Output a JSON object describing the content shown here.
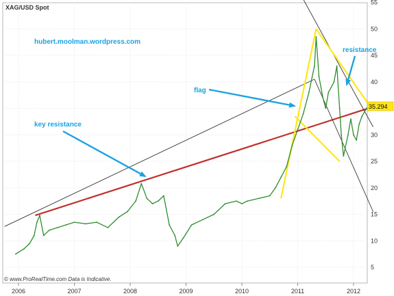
{
  "chart_data": {
    "type": "line",
    "title": "XAG/USD Spot",
    "source_note": "© www.ProRealTime.com  Data is Indicative.",
    "watermark": "hubert.moolman.wordpress.com",
    "x_ticks": [
      "2006",
      "2007",
      "2008",
      "2009",
      "2010",
      "2011",
      "2012"
    ],
    "y_ticks": [
      5,
      10,
      15,
      20,
      25,
      30,
      35,
      40,
      45,
      50,
      55
    ],
    "ylim": [
      2,
      55
    ],
    "last_price_label": "35.294",
    "grid": true,
    "price_series": {
      "x": [
        2005.95,
        2006.1,
        2006.2,
        2006.28,
        2006.33,
        2006.38,
        2006.45,
        2006.55,
        2006.7,
        2006.85,
        2007.0,
        2007.2,
        2007.4,
        2007.6,
        2007.8,
        2007.95,
        2008.1,
        2008.2,
        2008.3,
        2008.4,
        2008.5,
        2008.6,
        2008.7,
        2008.8,
        2008.85,
        2008.95,
        2009.1,
        2009.3,
        2009.5,
        2009.7,
        2009.9,
        2010.0,
        2010.1,
        2010.3,
        2010.5,
        2010.6,
        2010.7,
        2010.8,
        2010.9,
        2011.0,
        2011.1,
        2011.2,
        2011.3,
        2011.33,
        2011.38,
        2011.45,
        2011.5,
        2011.55,
        2011.65,
        2011.7,
        2011.75,
        2011.78,
        2011.82,
        2011.9,
        2011.95,
        2012.0,
        2012.05,
        2012.1,
        2012.15,
        2012.25
      ],
      "y": [
        7.5,
        8.5,
        9.5,
        11,
        13.5,
        14.8,
        11,
        12,
        12.5,
        13,
        13.5,
        13.2,
        13.5,
        12.5,
        14.5,
        15.5,
        17.5,
        20.8,
        18,
        17,
        17.5,
        18.5,
        13,
        11,
        9,
        10.5,
        13,
        14,
        15,
        17,
        17.5,
        17,
        17.5,
        18,
        18.5,
        20,
        22,
        24,
        28,
        31,
        34,
        38,
        43,
        48.5,
        41,
        37,
        35,
        38,
        40,
        43,
        35,
        30,
        26,
        30,
        33,
        30,
        29,
        32,
        33.5,
        35.3
      ]
    },
    "annotations": [
      {
        "text": "key resistance"
      },
      {
        "text": "flag"
      },
      {
        "text": "resistance"
      }
    ],
    "trendlines": [
      {
        "name": "key-resistance-line",
        "color": "#c0302c",
        "points": [
          [
            2006.3,
            14.8
          ],
          [
            2012.35,
            35.3
          ]
        ]
      },
      {
        "name": "upper-channel-line",
        "color": "#333333",
        "points": [
          [
            2011.0,
            57.5
          ],
          [
            2012.35,
            31.5
          ]
        ]
      },
      {
        "name": "lower-channel-line",
        "color": "#333333",
        "points": [
          [
            2005.75,
            12.7
          ],
          [
            2011.3,
            40.5
          ]
        ]
      },
      {
        "name": "lower-channel-line-2",
        "color": "#333333",
        "points": [
          [
            2011.3,
            40.5
          ],
          [
            2012.35,
            15.5
          ]
        ]
      },
      {
        "name": "flag-pole-line",
        "color": "#ffe619",
        "points": [
          [
            2010.7,
            18
          ],
          [
            2011.33,
            50
          ]
        ]
      },
      {
        "name": "flag-top-line",
        "color": "#ffe619",
        "points": [
          [
            2011.33,
            50
          ],
          [
            2012.3,
            35.3
          ]
        ]
      },
      {
        "name": "flag-bottom-line",
        "color": "#ffe619",
        "points": [
          [
            2010.95,
            33.5
          ],
          [
            2011.75,
            25
          ]
        ]
      }
    ],
    "colors": {
      "price": "#2e8b2e",
      "annotation": "#1aa3e0",
      "label_bg": "#ffe619"
    }
  }
}
